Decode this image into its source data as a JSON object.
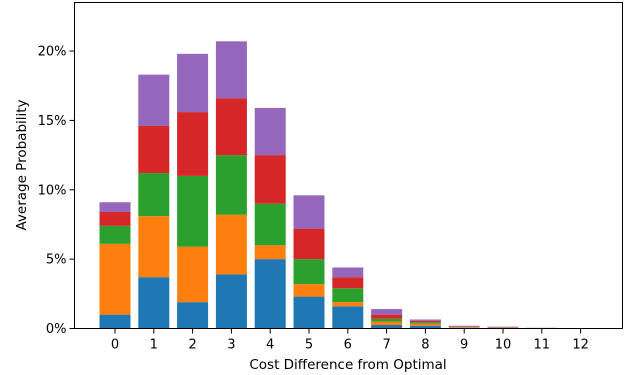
{
  "chart_data": {
    "type": "bar",
    "stacked": true,
    "categories": [
      "0",
      "1",
      "2",
      "3",
      "4",
      "5",
      "6",
      "7",
      "8",
      "9",
      "10",
      "11",
      "12"
    ],
    "xlabel": "Cost Difference from Optimal",
    "ylabel": "Average Probability",
    "ylim": [
      0,
      0.235
    ],
    "yticks": [
      {
        "value": 0,
        "label": "0%"
      },
      {
        "value": 0.05,
        "label": "5%"
      },
      {
        "value": 0.1,
        "label": "10%"
      },
      {
        "value": 0.15,
        "label": "15%"
      },
      {
        "value": 0.2,
        "label": "20%"
      }
    ],
    "grid": false,
    "legend": "none",
    "series": [
      {
        "color": "#1f77b4",
        "values": [
          0.01,
          0.037,
          0.019,
          0.039,
          0.05,
          0.023,
          0.016,
          0.0025,
          0.002,
          0.0005,
          0.0003,
          0.0001,
          5e-05
        ]
      },
      {
        "color": "#ff7f0e",
        "values": [
          0.051,
          0.044,
          0.04,
          0.043,
          0.01,
          0.009,
          0.003,
          0.0025,
          0.0015,
          0.0004,
          0.0003,
          0.0001,
          5e-05
        ]
      },
      {
        "color": "#2ca02c",
        "values": [
          0.013,
          0.031,
          0.051,
          0.043,
          0.03,
          0.018,
          0.01,
          0.002,
          0.001,
          0.0003,
          0.0002,
          0.0001,
          5e-05
        ]
      },
      {
        "color": "#d62728",
        "values": [
          0.01,
          0.034,
          0.046,
          0.041,
          0.035,
          0.022,
          0.008,
          0.003,
          0.001,
          0.0004,
          0.0002,
          0.0001,
          5e-05
        ]
      },
      {
        "color": "#9467bd",
        "values": [
          0.007,
          0.037,
          0.042,
          0.041,
          0.034,
          0.024,
          0.007,
          0.004,
          0.001,
          0.0004,
          0.0003,
          0.0001,
          5e-05
        ]
      }
    ]
  }
}
